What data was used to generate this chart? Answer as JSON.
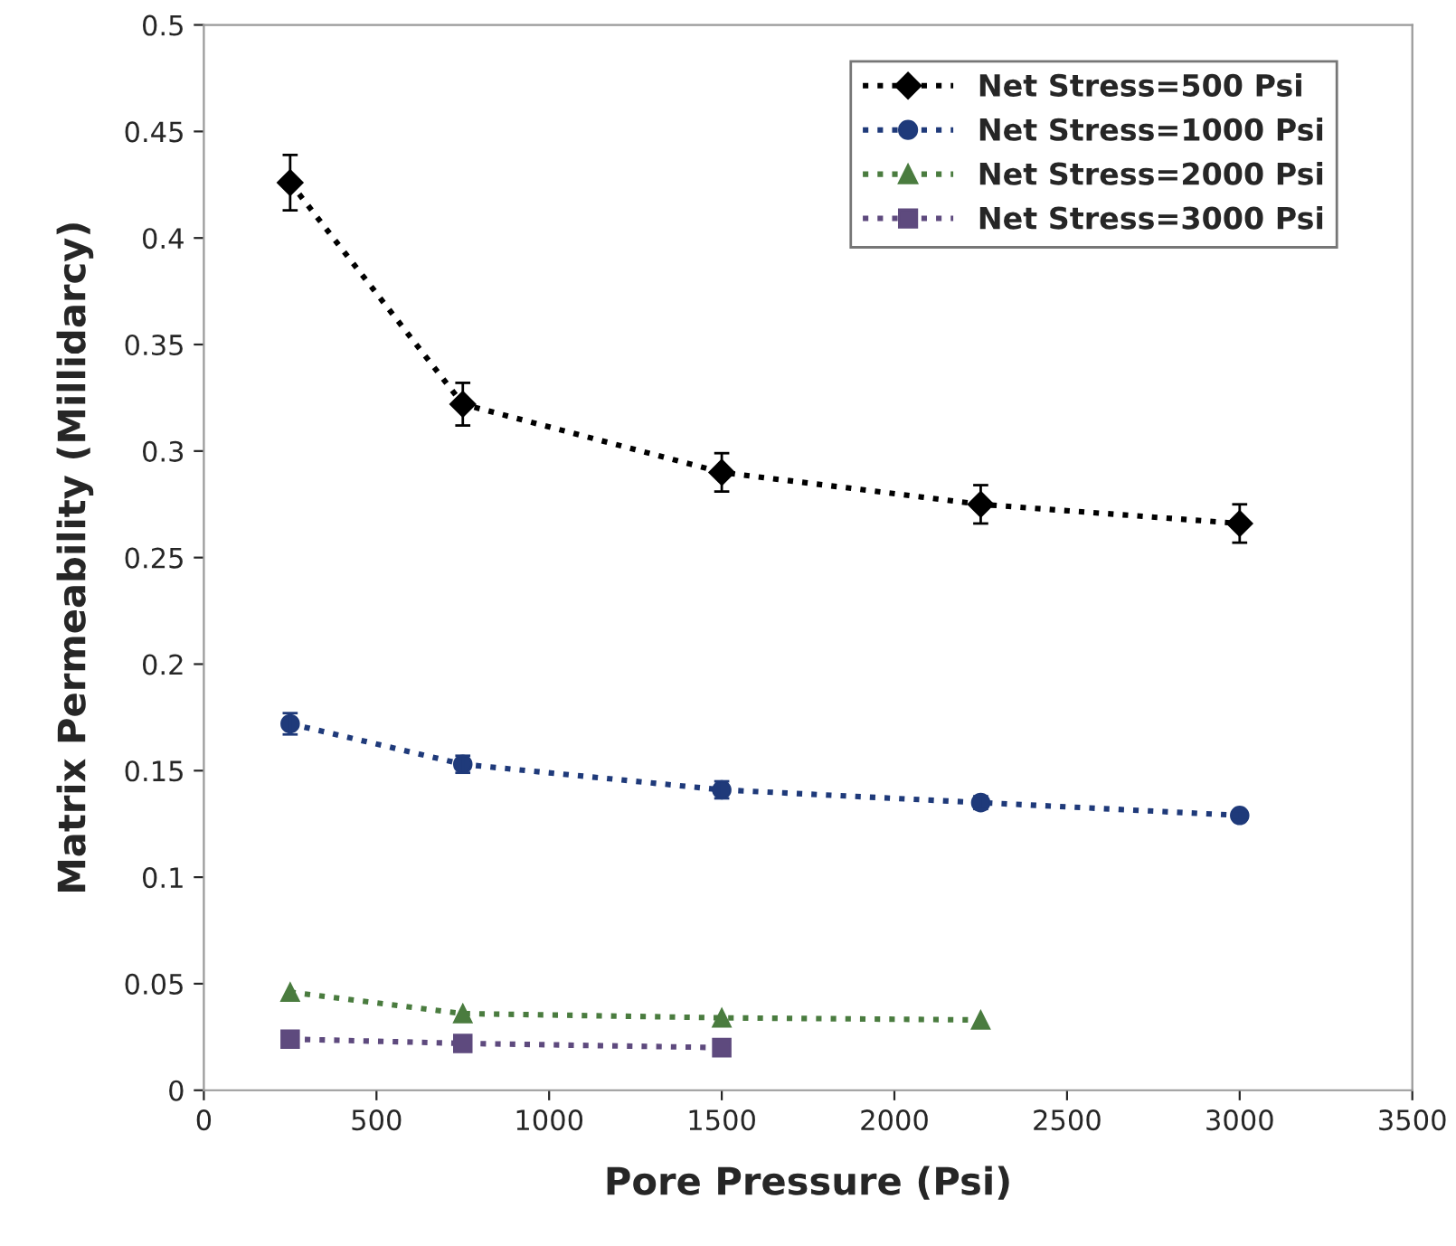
{
  "chart_data": {
    "type": "line",
    "xlabel": "Pore Pressure (Psi)",
    "ylabel": "Matrix Permeability (Millidarcy)",
    "xlim": [
      0,
      3500
    ],
    "xticks": [
      0,
      500,
      1000,
      1500,
      2000,
      2500,
      3000,
      3500
    ],
    "ylim": [
      0,
      0.5
    ],
    "yticks": [
      0,
      0.05,
      0.1,
      0.15,
      0.2,
      0.25,
      0.3,
      0.35,
      0.4,
      0.45,
      0.5
    ],
    "grid": false,
    "legend": "top right",
    "line_style": "dotted",
    "series": [
      {
        "name": "Net Stress=500 Psi",
        "color": "#000000",
        "marker": "diamond",
        "x": [
          250,
          750,
          1500,
          2250,
          3000
        ],
        "values": [
          0.426,
          0.322,
          0.29,
          0.275,
          0.266
        ],
        "errors": [
          0.013,
          0.01,
          0.009,
          0.009,
          0.009
        ]
      },
      {
        "name": "Net Stress=1000 Psi",
        "color": "#1f3a7a",
        "marker": "circle",
        "x": [
          250,
          750,
          1500,
          2250,
          3000
        ],
        "values": [
          0.172,
          0.153,
          0.141,
          0.135,
          0.129
        ],
        "errors": [
          0.005,
          0.004,
          0.004,
          0.003,
          0.002
        ]
      },
      {
        "name": "Net Stress=2000 Psi",
        "color": "#4a7c3f",
        "marker": "triangle",
        "x": [
          250,
          750,
          1500,
          2250
        ],
        "values": [
          0.046,
          0.036,
          0.034,
          0.033
        ]
      },
      {
        "name": "Net Stress=3000 Psi",
        "color": "#5e4a7e",
        "marker": "square",
        "x": [
          250,
          750,
          1500
        ],
        "values": [
          0.024,
          0.022,
          0.02
        ]
      }
    ]
  }
}
